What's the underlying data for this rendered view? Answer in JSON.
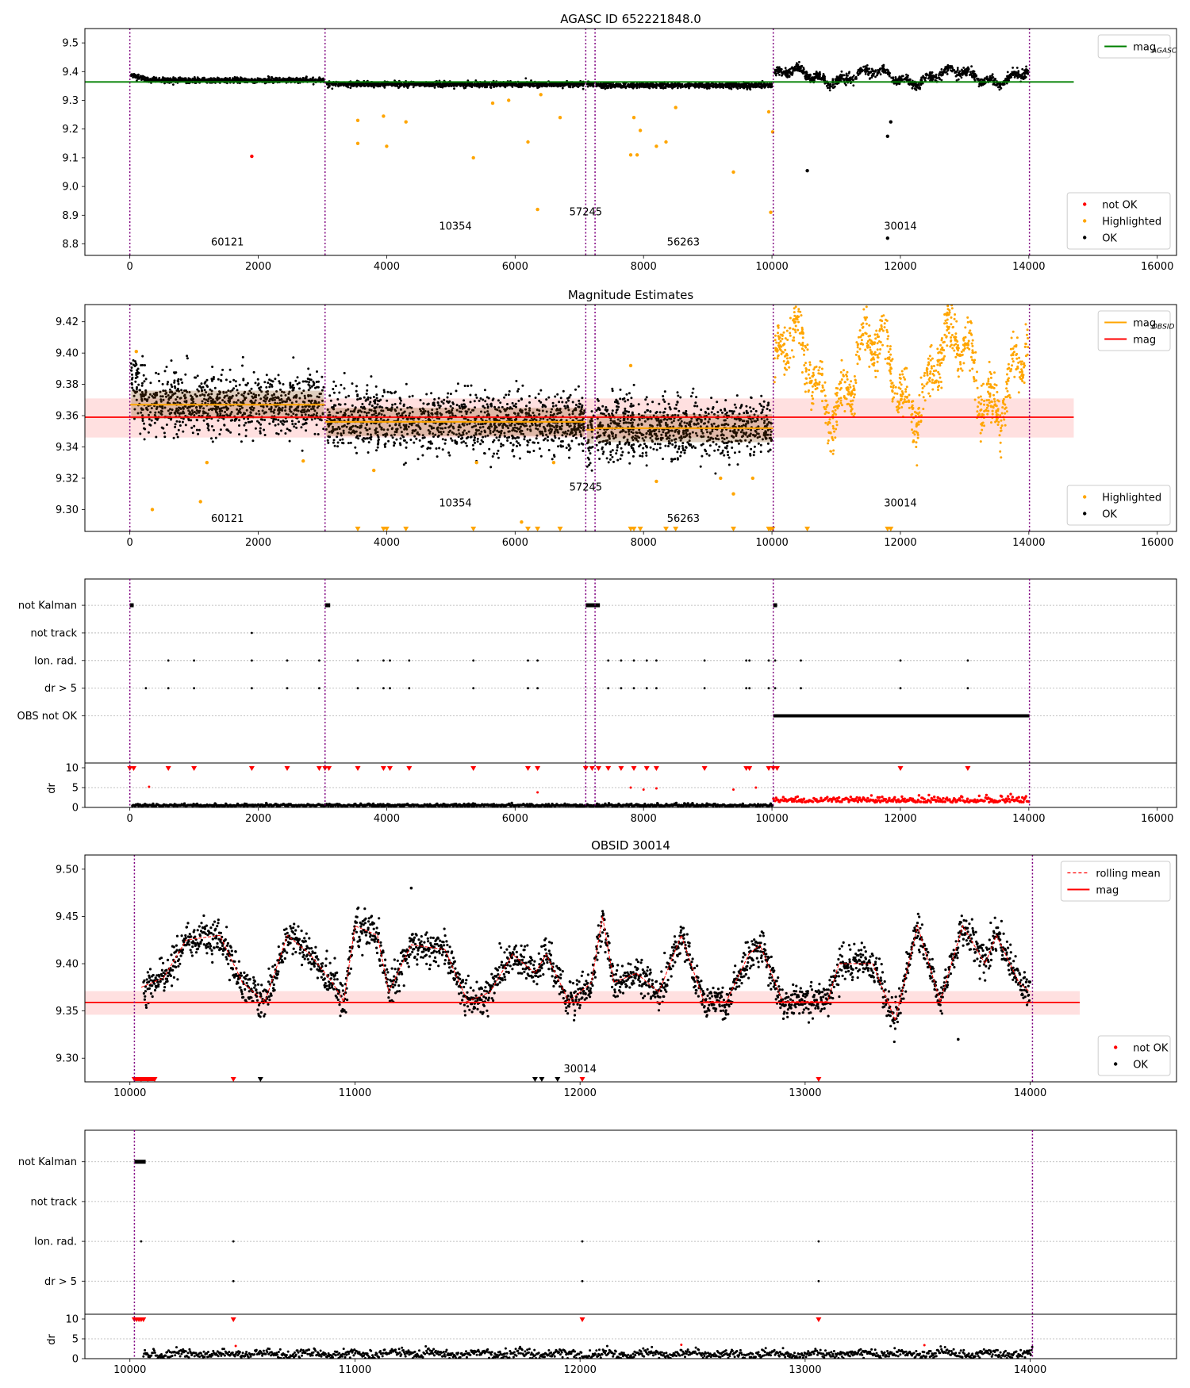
{
  "chart_data": [
    {
      "id": "p1",
      "type": "scatter",
      "title": "AGASC ID 652221848.0",
      "xlim": [
        -700,
        16300
      ],
      "ylim": [
        8.76,
        9.55
      ],
      "xticks": [
        0,
        2000,
        4000,
        6000,
        8000,
        10000,
        12000,
        14000,
        16000
      ],
      "yticks": [
        8.8,
        8.9,
        9.0,
        9.1,
        9.2,
        9.3,
        9.4,
        9.5
      ],
      "ytick_decimals": 1,
      "obsid_boundaries": [
        0,
        3040,
        7100,
        7245,
        10020,
        14010
      ],
      "obsid_labels": [
        {
          "text": "60121",
          "x": 1520,
          "y": 8.795
        },
        {
          "text": "10354",
          "x": 5070,
          "y": 8.85
        },
        {
          "text": "57245",
          "x": 7100,
          "y": 8.9
        },
        {
          "text": "56263",
          "x": 8620,
          "y": 8.795
        },
        {
          "text": "30014",
          "x": 12000,
          "y": 8.85
        }
      ],
      "reference_lines": [
        {
          "label": "mag",
          "subscript": "AGASC",
          "y": 9.364,
          "x_range": [
            -700,
            14700
          ],
          "color": "#008000"
        }
      ],
      "base_levels": [
        9.37,
        9.356,
        9.356,
        9.352,
        9.36
      ],
      "level_spread": 0.008,
      "var_amplitude": 0.04,
      "series": [
        {
          "name": "not OK",
          "color": "#ff0000",
          "points": [
            [
              1900,
              9.105
            ]
          ]
        },
        {
          "name": "Highlighted",
          "color": "#ffa500",
          "points": [
            [
              3550,
              9.23
            ],
            [
              3550,
              9.15
            ],
            [
              3950,
              9.245
            ],
            [
              4000,
              9.14
            ],
            [
              4300,
              9.225
            ],
            [
              5350,
              9.1
            ],
            [
              5650,
              9.29
            ],
            [
              5900,
              9.3
            ],
            [
              6200,
              9.155
            ],
            [
              6350,
              8.92
            ],
            [
              6400,
              9.32
            ],
            [
              6700,
              9.24
            ],
            [
              7850,
              9.24
            ],
            [
              7800,
              9.11
            ],
            [
              7900,
              9.11
            ],
            [
              7950,
              9.195
            ],
            [
              8200,
              9.14
            ],
            [
              8350,
              9.155
            ],
            [
              8500,
              9.275
            ],
            [
              9400,
              9.05
            ],
            [
              9950,
              9.26
            ],
            [
              9980,
              8.91
            ],
            [
              10010,
              9.19
            ]
          ]
        },
        {
          "name": "OK",
          "color": "#000000",
          "points": [
            [
              10550,
              9.055
            ],
            [
              11800,
              9.175
            ],
            [
              11850,
              9.225
            ],
            [
              11800,
              8.82
            ]
          ]
        }
      ],
      "legend_upper": {
        "position": "top-right",
        "entries": [
          {
            "label": "mag",
            "subscript": "AGASC",
            "color": "#008000"
          }
        ]
      },
      "legend_lower": {
        "position": "bottom-right",
        "entries": [
          {
            "label": "not OK",
            "color": "#ff0000"
          },
          {
            "label": "Highlighted",
            "color": "#ffa500"
          },
          {
            "label": "OK",
            "color": "#000000"
          }
        ]
      }
    },
    {
      "id": "p2",
      "type": "scatter",
      "title": "Magnitude Estimates",
      "xlim": [
        -700,
        16300
      ],
      "ylim": [
        9.286,
        9.431
      ],
      "xticks": [
        0,
        2000,
        4000,
        6000,
        8000,
        10000,
        12000,
        14000,
        16000
      ],
      "yticks": [
        9.3,
        9.32,
        9.34,
        9.36,
        9.38,
        9.4,
        9.42
      ],
      "ytick_decimals": 2,
      "obsid_boundaries": [
        0,
        3040,
        7100,
        7245,
        10020,
        14010
      ],
      "obsid_labels": [
        {
          "text": "60121",
          "x": 1520,
          "y": 9.292
        },
        {
          "text": "10354",
          "x": 5070,
          "y": 9.302
        },
        {
          "text": "57245",
          "x": 7100,
          "y": 9.312
        },
        {
          "text": "56263",
          "x": 8620,
          "y": 9.292
        },
        {
          "text": "30014",
          "x": 12000,
          "y": 9.302
        }
      ],
      "reference_lines": [
        {
          "label": "mag",
          "y": 9.359,
          "x_range": [
            -700,
            14700
          ],
          "color": "#ff0000"
        }
      ],
      "band": {
        "y0": 9.346,
        "y1": 9.371,
        "x_range": [
          -700,
          14700
        ],
        "color": "#ff0000",
        "opacity": 0.12
      },
      "obsid_mags": [
        {
          "x_range": [
            0,
            3040
          ],
          "y": 9.367
        },
        {
          "x_range": [
            3040,
            7100
          ],
          "y": 9.356
        },
        {
          "x_range": [
            7100,
            7245
          ],
          "y": 9.351
        },
        {
          "x_range": [
            7245,
            10020
          ],
          "y": 9.352
        }
      ],
      "base_levels": [
        9.367,
        9.356,
        9.351,
        9.352,
        9.36
      ],
      "level_spread": 0.012,
      "var_amplitude": 0.045,
      "series": [
        {
          "name": "Highlighted",
          "color": "#ffa500",
          "points": [
            [
              100,
              9.401
            ],
            [
              350,
              9.3
            ],
            [
              1100,
              9.305
            ],
            [
              1200,
              9.33
            ],
            [
              2700,
              9.331
            ],
            [
              3800,
              9.325
            ],
            [
              5400,
              9.33
            ],
            [
              6100,
              9.292
            ],
            [
              6600,
              9.33
            ],
            [
              7800,
              9.392
            ],
            [
              8200,
              9.318
            ],
            [
              9200,
              9.32
            ],
            [
              9400,
              9.31
            ],
            [
              9700,
              9.32
            ]
          ]
        },
        {
          "name": "OK",
          "color": "#000000",
          "points": []
        }
      ],
      "clipped_markers": {
        "color": "#ffa500",
        "x": [
          3550,
          3950,
          4000,
          4300,
          5350,
          6200,
          6350,
          6700,
          7800,
          7850,
          7950,
          8350,
          8500,
          9400,
          9950,
          9980,
          10010,
          10550,
          11800,
          11850
        ]
      },
      "legend_upper": {
        "position": "top-right",
        "entries": [
          {
            "label": "mag",
            "subscript": "OBSID",
            "color": "#ffa500"
          },
          {
            "label": "mag",
            "color": "#ff0000"
          }
        ]
      },
      "legend_lower": {
        "position": "bottom-right",
        "entries": [
          {
            "label": "Highlighted",
            "color": "#ffa500"
          },
          {
            "label": "OK",
            "color": "#000000"
          }
        ]
      }
    },
    {
      "id": "p3",
      "type": "scatter",
      "title": "",
      "xlim": [
        -700,
        16300
      ],
      "xticks": [
        0,
        2000,
        4000,
        6000,
        8000,
        10000,
        12000,
        14000,
        16000
      ],
      "obsid_boundaries": [
        0,
        3040,
        7100,
        7245,
        10020,
        14010
      ],
      "flag_rows": [
        "not Kalman",
        "not track",
        "Ion. rad.",
        "dr > 5",
        "OBS not OK"
      ],
      "flags": {
        "not Kalman": [
          [
            0,
            60
          ],
          [
            3040,
            3120
          ],
          [
            7100,
            7320
          ],
          [
            10020,
            10080
          ]
        ],
        "not track": [
          1900
        ],
        "Ion. rad.": [
          600,
          1000,
          1900,
          2450,
          2950,
          3550,
          3950,
          4050,
          4350,
          5350,
          6200,
          6350,
          7450,
          7650,
          7850,
          8050,
          8200,
          8950,
          9600,
          9650,
          9950,
          10050,
          10450,
          12000,
          13050
        ],
        "dr > 5": [
          250,
          600,
          1000,
          1900,
          2450,
          2950,
          3550,
          3950,
          4050,
          4350,
          5350,
          6200,
          6350,
          7450,
          7650,
          7850,
          8050,
          8200,
          8950,
          9600,
          9650,
          9950,
          10050,
          10450,
          12000,
          13050
        ],
        "OBS not OK": [
          [
            10020,
            14010
          ]
        ]
      },
      "dr_ylim": [
        0,
        10
      ],
      "dr_yticks": [
        0,
        5,
        10
      ],
      "dr_ylabel": "dr",
      "dr_outliers": [
        [
          300,
          5.2
        ],
        [
          6350,
          3.8
        ],
        [
          7800,
          5.0
        ],
        [
          8000,
          4.5
        ],
        [
          8200,
          4.8
        ],
        [
          9400,
          4.5
        ],
        [
          9750,
          5.0
        ]
      ],
      "dr_capped": [
        0,
        60,
        3040,
        3100,
        7100,
        7200,
        7300,
        10020,
        10080,
        600,
        1000,
        1900,
        2450,
        2950,
        3550,
        3950,
        4050,
        4350,
        5350,
        6200,
        6350,
        7450,
        7650,
        7850,
        8050,
        8200,
        8950,
        9600,
        9650,
        9950,
        12000,
        13050
      ]
    },
    {
      "id": "p4",
      "type": "scatter",
      "title": "OBSID 30014",
      "xlim": [
        9800,
        14650
      ],
      "ylim": [
        9.275,
        9.515
      ],
      "xticks": [
        10000,
        11000,
        12000,
        13000,
        14000
      ],
      "yticks": [
        9.3,
        9.35,
        9.4,
        9.45,
        9.5
      ],
      "ytick_decimals": 2,
      "obsid_boundaries": [
        10020,
        14010
      ],
      "obsid_labels": [
        {
          "text": "30014",
          "x": 12000,
          "y": 9.285
        }
      ],
      "reference_lines": [
        {
          "label": "mag",
          "y": 9.359,
          "x_range": [
            9800,
            14220
          ],
          "color": "#ff0000"
        }
      ],
      "band": {
        "y0": 9.346,
        "y1": 9.371,
        "x_range": [
          9800,
          14220
        ],
        "color": "#ff0000",
        "opacity": 0.12
      },
      "rolling_mean": [
        [
          10050,
          9.375
        ],
        [
          10150,
          9.385
        ],
        [
          10250,
          9.425
        ],
        [
          10400,
          9.43
        ],
        [
          10500,
          9.38
        ],
        [
          10600,
          9.36
        ],
        [
          10700,
          9.43
        ],
        [
          10800,
          9.41
        ],
        [
          10900,
          9.38
        ],
        [
          10950,
          9.36
        ],
        [
          11000,
          9.44
        ],
        [
          11100,
          9.43
        ],
        [
          11150,
          9.37
        ],
        [
          11250,
          9.42
        ],
        [
          11400,
          9.415
        ],
        [
          11500,
          9.36
        ],
        [
          11600,
          9.37
        ],
        [
          11700,
          9.41
        ],
        [
          11800,
          9.39
        ],
        [
          11850,
          9.41
        ],
        [
          11950,
          9.36
        ],
        [
          12050,
          9.38
        ],
        [
          12100,
          9.45
        ],
        [
          12150,
          9.38
        ],
        [
          12250,
          9.39
        ],
        [
          12350,
          9.37
        ],
        [
          12450,
          9.43
        ],
        [
          12550,
          9.36
        ],
        [
          12650,
          9.36
        ],
        [
          12750,
          9.41
        ],
        [
          12800,
          9.42
        ],
        [
          12900,
          9.36
        ],
        [
          13000,
          9.36
        ],
        [
          13100,
          9.36
        ],
        [
          13150,
          9.4
        ],
        [
          13300,
          9.4
        ],
        [
          13400,
          9.34
        ],
        [
          13500,
          9.44
        ],
        [
          13600,
          9.36
        ],
        [
          13700,
          9.44
        ],
        [
          13800,
          9.4
        ],
        [
          13850,
          9.43
        ],
        [
          13950,
          9.38
        ],
        [
          14000,
          9.37
        ]
      ],
      "series": [
        {
          "name": "not OK",
          "color": "#ff0000",
          "points": []
        },
        {
          "name": "OK",
          "color": "#000000",
          "points": [
            [
              11250,
              9.48
            ],
            [
              13680,
              9.32
            ]
          ]
        }
      ],
      "clipped_markers": {
        "color": "#ff0000",
        "x": [
          10020,
          10050,
          10080,
          10110,
          10460,
          12010,
          13060
        ]
      },
      "clipped_markers_ok": {
        "color": "#000000",
        "x": [
          10580,
          11800,
          11830,
          11900
        ]
      },
      "legend_upper": {
        "position": "top-right",
        "entries": [
          {
            "label": "rolling mean",
            "color": "#ff0000",
            "style": "dashed"
          },
          {
            "label": "mag",
            "color": "#ff0000"
          }
        ]
      },
      "legend_lower": {
        "position": "bottom-right",
        "entries": [
          {
            "label": "not OK",
            "color": "#ff0000"
          },
          {
            "label": "OK",
            "color": "#000000"
          }
        ]
      }
    },
    {
      "id": "p5",
      "type": "scatter",
      "title": "",
      "xlim": [
        9800,
        14650
      ],
      "xticks": [
        10000,
        11000,
        12000,
        13000,
        14000
      ],
      "obsid_boundaries": [
        10020,
        14010
      ],
      "flag_rows": [
        "not Kalman",
        "not track",
        "Ion. rad.",
        "dr > 5"
      ],
      "flags": {
        "not Kalman": [
          [
            10020,
            10070
          ]
        ],
        "not track": [],
        "Ion. rad.": [
          10050,
          10460,
          12010,
          13060
        ],
        "dr > 5": [
          10460,
          12010,
          13060
        ]
      },
      "dr_ylim": [
        0,
        10
      ],
      "dr_yticks": [
        0,
        5,
        10
      ],
      "dr_ylabel": "dr",
      "dr_outliers": [
        [
          10470,
          3.2
        ],
        [
          12450,
          3.5
        ],
        [
          13530,
          3.4
        ]
      ],
      "dr_capped": [
        10020,
        10030,
        10040,
        10050,
        10060,
        10460,
        12010,
        13060
      ]
    }
  ]
}
